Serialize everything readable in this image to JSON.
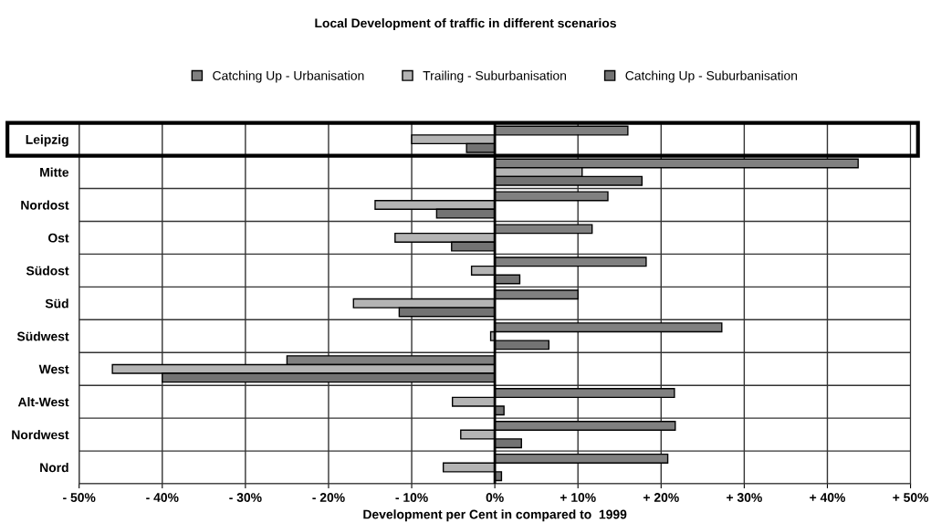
{
  "chart_data": {
    "type": "bar",
    "orientation": "horizontal",
    "title": "Local Development of traffic in different scenarios",
    "xlabel": "Development per Cent in compared to  1999",
    "categories": [
      "Leipzig",
      "Mitte",
      "Nordost",
      "Ost",
      "Südost",
      "Süd",
      "Südwest",
      "West",
      "Alt-West",
      "Nordwest",
      "Nord"
    ],
    "series": [
      {
        "name": "Catching Up - Urbanisation",
        "color": "#808080",
        "values": [
          16,
          43.7,
          13.6,
          11.7,
          18.2,
          10,
          27.3,
          -25,
          21.6,
          21.7,
          20.8
        ]
      },
      {
        "name": "Trailing - Suburbanisation",
        "color": "#b4b4b4",
        "values": [
          -10,
          10.5,
          -14.4,
          -12,
          -2.8,
          -17,
          -0.5,
          -46,
          -5.1,
          -4.1,
          -6.2
        ]
      },
      {
        "name": "Catching Up - Suburbanisation",
        "color": "#737373",
        "values": [
          -3.4,
          17.7,
          -7,
          -5.2,
          3,
          -11.5,
          6.5,
          -40,
          1.1,
          3.2,
          0.8
        ]
      }
    ],
    "xlim": [
      -50,
      50
    ],
    "xticks": [
      {
        "value": -50,
        "label": "- 50%"
      },
      {
        "value": -40,
        "label": "- 40%"
      },
      {
        "value": -30,
        "label": "- 30%"
      },
      {
        "value": -20,
        "label": "- 20%"
      },
      {
        "value": -10,
        "label": "- 10%"
      },
      {
        "value": 0,
        "label": "0%"
      },
      {
        "value": 10,
        "label": "+ 10%"
      },
      {
        "value": 20,
        "label": "+ 20%"
      },
      {
        "value": 30,
        "label": "+ 30%"
      },
      {
        "value": 40,
        "label": "+ 40%"
      },
      {
        "value": 50,
        "label": "+ 50%"
      }
    ],
    "grid": true,
    "legend": "top"
  }
}
